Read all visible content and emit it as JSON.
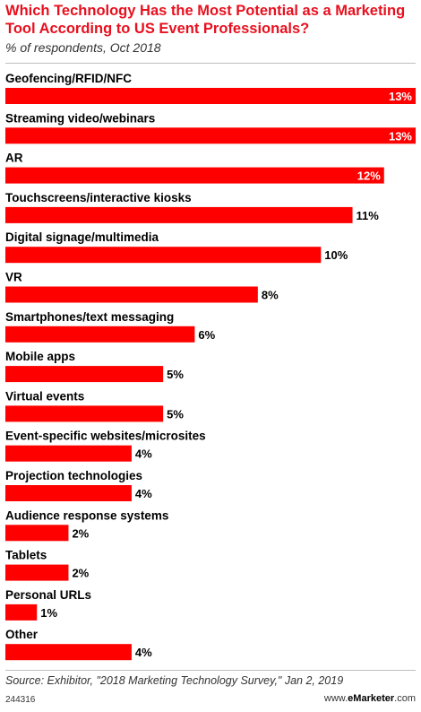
{
  "header": {
    "title": "Which Technology Has the Most Potential as a Marketing Tool According to US Event Professionals?",
    "subtitle": "% of respondents, Oct 2018"
  },
  "footer": {
    "source": "Source: Exhibitor, \"2018 Marketing Technology Survey,\" Jan 2, 2019",
    "chart_id": "244316",
    "brand_prefix": "www.",
    "brand_name": "eMarketer",
    "brand_suffix": ".com"
  },
  "colors": {
    "bar": "#fe0000",
    "title": "#e8101e"
  },
  "chart_data": {
    "type": "bar",
    "orientation": "horizontal",
    "title": "Which Technology Has the Most Potential as a Marketing Tool According to US Event Professionals?",
    "subtitle": "% of respondents, Oct 2018",
    "value_suffix": "%",
    "categories": [
      "Geofencing/RFID/NFC",
      "Streaming video/webinars",
      "AR",
      "Touchscreens/interactive kiosks",
      "Digital signage/multimedia",
      "VR",
      "Smartphones/text messaging",
      "Mobile apps",
      "Virtual events",
      "Event-specific websites/microsites",
      "Projection technologies",
      "Audience response systems",
      "Tablets",
      "Personal URLs",
      "Other"
    ],
    "values": [
      13,
      13,
      12,
      11,
      10,
      8,
      6,
      5,
      5,
      4,
      4,
      2,
      2,
      1,
      4
    ],
    "xlim": [
      0,
      13
    ],
    "grid": false,
    "legend": "none"
  }
}
